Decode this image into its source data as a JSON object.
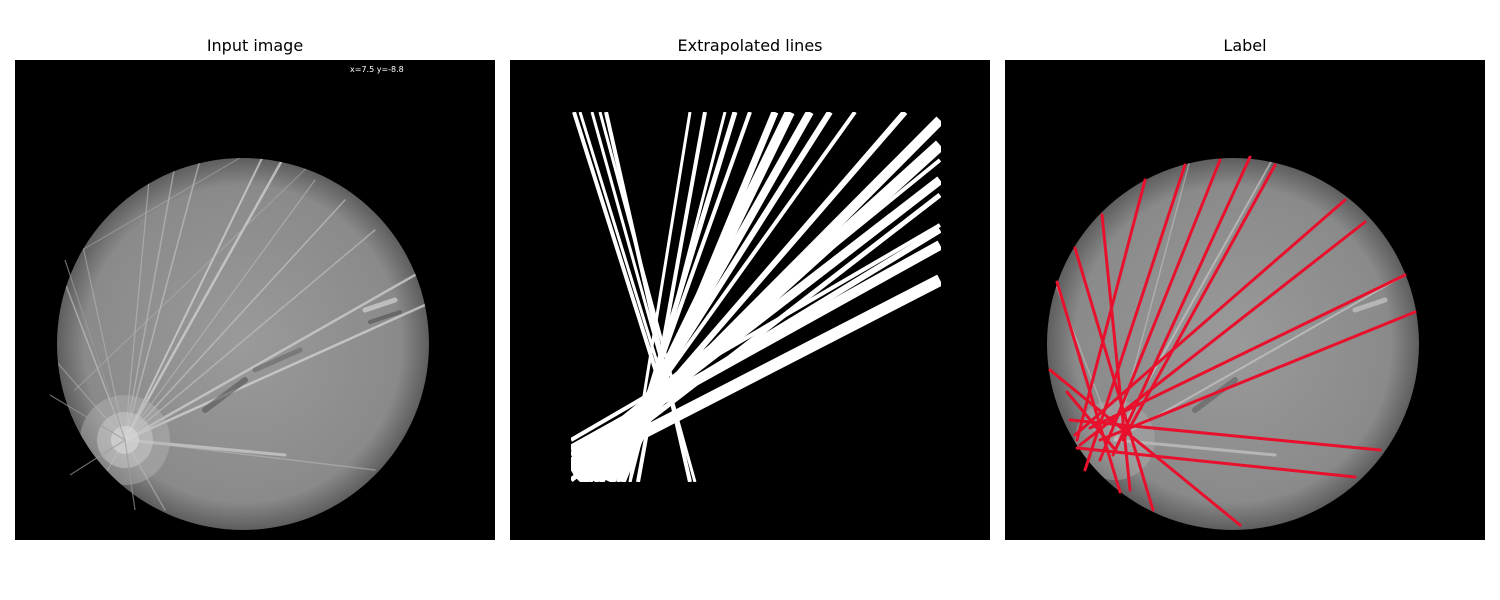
{
  "panels": [
    {
      "title": "Input image",
      "coord_readout": "x=7.5 y=-8.8"
    },
    {
      "title": "Extrapolated lines"
    },
    {
      "title": "Label"
    }
  ],
  "colors": {
    "background": "#ffffff",
    "panel_background": "#000000",
    "disc_fill": "#8f8f8f",
    "line_mask": "#ffffff",
    "label_line": "#e8112d"
  }
}
